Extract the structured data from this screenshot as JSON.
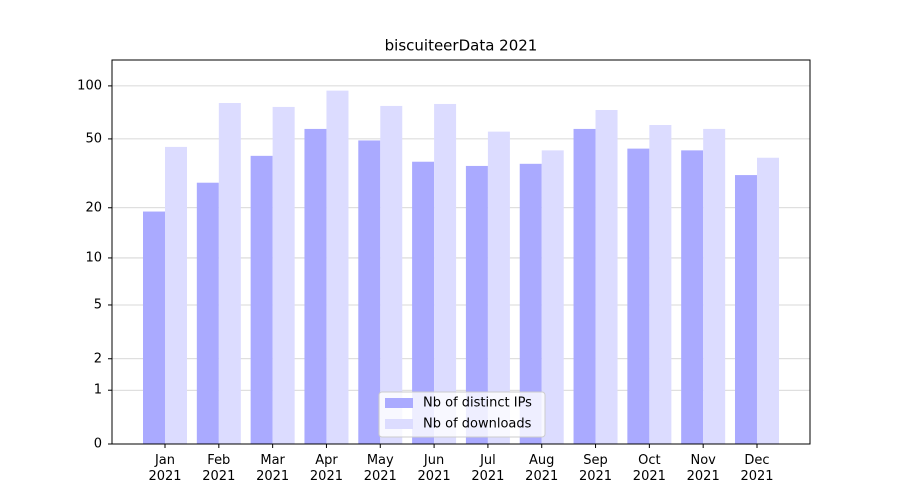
{
  "chart_data": {
    "type": "bar",
    "title": "biscuiteerData 2021",
    "categories": [
      "Jan\n2021",
      "Feb\n2021",
      "Mar\n2021",
      "Apr\n2021",
      "May\n2021",
      "Jun\n2021",
      "Jul\n2021",
      "Aug\n2021",
      "Sep\n2021",
      "Oct\n2021",
      "Nov\n2021",
      "Dec\n2021"
    ],
    "series": [
      {
        "name": "Nb of distinct IPs",
        "color": "#aaaaff",
        "values": [
          19,
          28,
          40,
          57,
          49,
          37,
          35,
          36,
          57,
          44,
          43,
          31
        ]
      },
      {
        "name": "Nb of downloads",
        "color": "#dcdcff",
        "values": [
          45,
          80,
          76,
          94,
          77,
          79,
          55,
          43,
          73,
          60,
          57,
          39
        ]
      }
    ],
    "yscale": "log1p",
    "ylim": [
      0,
      140
    ],
    "yticks": [
      0,
      1,
      2,
      5,
      10,
      20,
      50,
      100
    ],
    "grid": true,
    "legend": "lower center"
  }
}
